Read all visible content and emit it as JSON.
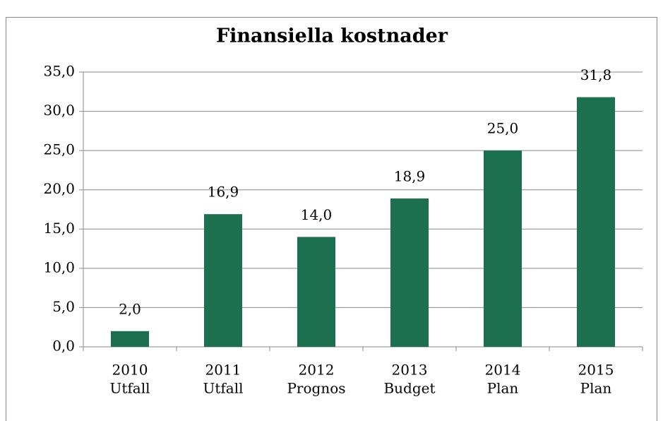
{
  "chart_data": {
    "type": "bar",
    "title": "Finansiella kostnader",
    "categories": [
      [
        "2010",
        "Utfall"
      ],
      [
        "2011",
        "Utfall"
      ],
      [
        "2012",
        "Prognos"
      ],
      [
        "2013",
        "Budget"
      ],
      [
        "2014",
        "Plan"
      ],
      [
        "2015",
        "Plan"
      ]
    ],
    "values": [
      2.0,
      16.9,
      14.0,
      18.9,
      25.0,
      31.8
    ],
    "value_labels": [
      "2,0",
      "16,9",
      "14,0",
      "18,9",
      "25,0",
      "31,8"
    ],
    "color": "#1c7050",
    "ylim": [
      0,
      35
    ],
    "yticks": [
      {
        "value": 0,
        "label": "0,0"
      },
      {
        "value": 5,
        "label": "5,0"
      },
      {
        "value": 10,
        "label": "10,0"
      },
      {
        "value": 15,
        "label": "15,0"
      },
      {
        "value": 20,
        "label": "20,0"
      },
      {
        "value": 25,
        "label": "25,0"
      },
      {
        "value": 30,
        "label": "30,0"
      },
      {
        "value": 35,
        "label": "35,0"
      }
    ],
    "grid": true
  }
}
